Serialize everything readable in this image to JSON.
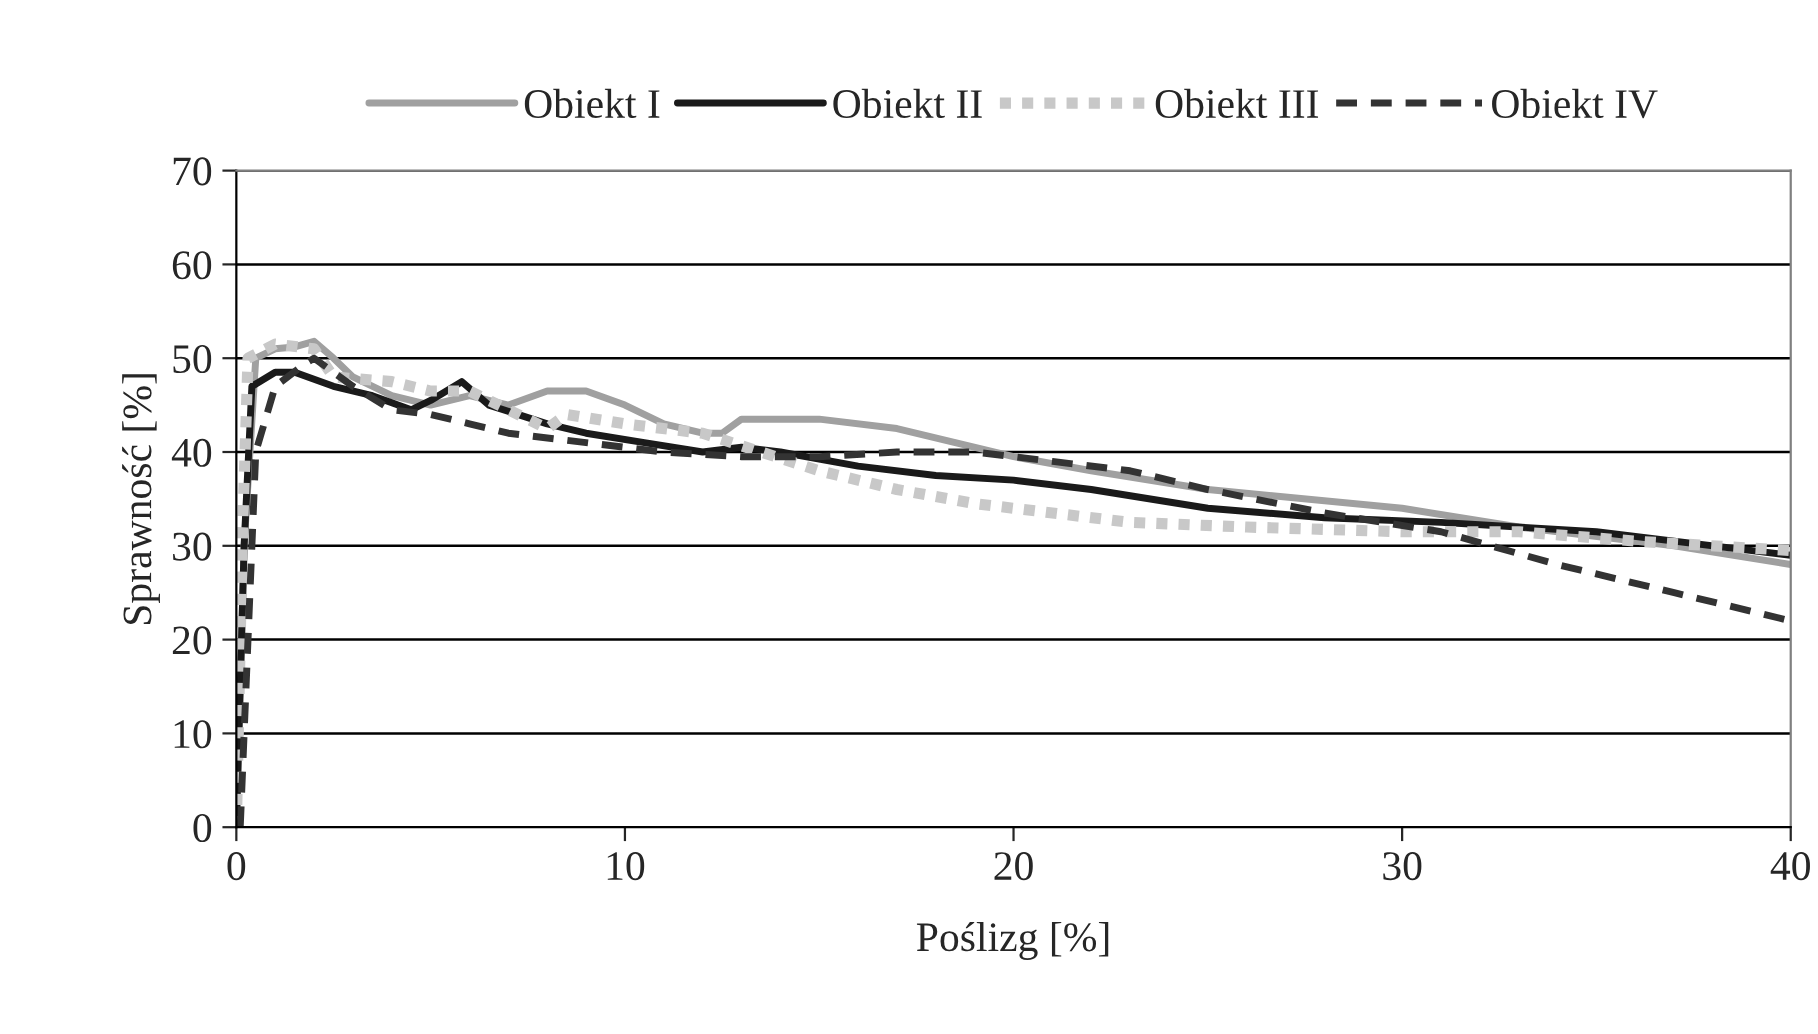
{
  "chart_data": {
    "type": "line",
    "xlabel": "Poślizg [%]",
    "ylabel": "Sprawność [%]",
    "xlim": [
      0,
      40
    ],
    "ylim": [
      0,
      70
    ],
    "xticks": [
      0,
      10,
      20,
      30,
      40
    ],
    "yticks": [
      0,
      10,
      20,
      30,
      40,
      50,
      60,
      70
    ],
    "grid": "y",
    "legend": "top",
    "marker": "none",
    "series": [
      {
        "name": "Obiekt I",
        "color": "#a0a0a0",
        "line_style": "solid",
        "x": [
          0,
          0.2,
          0.5,
          1,
          1.5,
          2,
          2.5,
          3,
          4,
          5,
          6,
          7,
          8,
          9,
          10,
          11,
          12,
          12.5,
          13,
          15,
          17,
          18.5,
          20,
          22,
          25,
          30,
          33,
          37,
          40
        ],
        "values": [
          0,
          30,
          50,
          51,
          51.2,
          51.8,
          50,
          48,
          46,
          45,
          46,
          45,
          46.5,
          46.5,
          45,
          43,
          42,
          42,
          43.5,
          43.5,
          42.5,
          41,
          39.5,
          38,
          36,
          34,
          32,
          30,
          28
        ]
      },
      {
        "name": "Obiekt II",
        "color": "#1a1a1a",
        "line_style": "solid",
        "x": [
          0,
          0.2,
          0.4,
          1,
          1.5,
          2.5,
          3.5,
          4.5,
          5,
          5.8,
          6.5,
          8,
          9,
          10.5,
          12,
          13,
          14,
          16,
          18,
          20,
          22,
          25,
          28,
          31,
          35,
          37,
          40
        ],
        "values": [
          0,
          30,
          47,
          48.5,
          48.5,
          47,
          46,
          44.5,
          45.5,
          47.5,
          45,
          43,
          42,
          41,
          40,
          40.5,
          40,
          38.5,
          37.5,
          37,
          36,
          34,
          33,
          32.5,
          31.5,
          30.5,
          29
        ]
      },
      {
        "name": "Obiekt III",
        "color": "#c8c8c8",
        "line_style": "dotted",
        "x": [
          0,
          0.15,
          0.3,
          1,
          2,
          2.5,
          4,
          5,
          6,
          7,
          8,
          8.5,
          10,
          12,
          13.5,
          15,
          17,
          19,
          21,
          23,
          26,
          30,
          33,
          36,
          40
        ],
        "values": [
          0,
          30,
          50,
          51.5,
          51,
          48,
          47.5,
          46.5,
          46.5,
          44.5,
          42.5,
          44,
          43,
          42,
          40,
          38,
          36,
          34.5,
          33.5,
          32.5,
          32,
          31.5,
          31.5,
          30.5,
          29.5
        ]
      },
      {
        "name": "Obiekt IV",
        "color": "#333333",
        "line_style": "dashed",
        "x": [
          0.1,
          0.3,
          0.5,
          1,
          1.8,
          2,
          3,
          4,
          5,
          6,
          7,
          9,
          11,
          13,
          15,
          17,
          19,
          21,
          23,
          25,
          28,
          31,
          34,
          37,
          39,
          40
        ],
        "values": [
          0,
          20,
          40,
          47,
          49.5,
          50,
          47,
          44.5,
          44,
          43,
          42,
          41,
          40,
          39.5,
          39.5,
          40,
          40,
          39,
          38,
          36,
          33.5,
          31.5,
          28,
          25,
          23,
          22
        ]
      }
    ]
  }
}
